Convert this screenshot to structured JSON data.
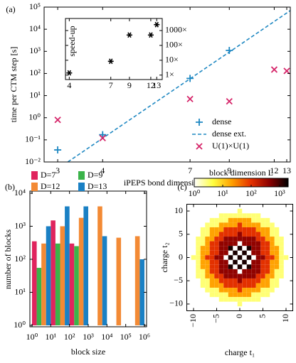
{
  "chart_data": [
    {
      "type": "scatter",
      "panel_label": "(a)",
      "xlabel": "iPEPS bond dimension D",
      "ylabel": "time per CTM step [s]",
      "xscale": "log",
      "yscale": "log",
      "xlim": [
        2.75,
        13.3
      ],
      "ylim": [
        0.01,
        100000
      ],
      "xticks": [
        3,
        4,
        7,
        9,
        12,
        13
      ],
      "yticks": [
        {
          "value": 0.01,
          "label": "10⁻²"
        },
        {
          "value": 0.1,
          "label": "10⁻¹"
        },
        {
          "value": 1,
          "label": "10⁰"
        },
        {
          "value": 10,
          "label": "10¹"
        },
        {
          "value": 100,
          "label": "10²"
        },
        {
          "value": 1000,
          "label": "10³"
        },
        {
          "value": 10000,
          "label": "10⁴"
        },
        {
          "value": 100000,
          "label": "10⁵"
        }
      ],
      "legend": "lower right",
      "series": [
        {
          "name": "dense",
          "color": "#1f88c2",
          "marker": "plus",
          "x": [
            3,
            4,
            7,
            9
          ],
          "values": [
            0.035,
            0.17,
            60,
            1100
          ]
        },
        {
          "name": "dense ext.",
          "color": "#1f88c2",
          "style": "dashed",
          "x": [
            3.2,
            13.3
          ],
          "values": [
            0.01,
            70000
          ]
        },
        {
          "name": "U(1)×U(1)",
          "color": "#d6266a",
          "marker": "x",
          "x": [
            3,
            4,
            7,
            9,
            12,
            13
          ],
          "values": [
            0.8,
            0.12,
            7,
            5.5,
            150,
            130
          ]
        }
      ]
    },
    {
      "type": "scatter",
      "ylabel": "speed-up",
      "xscale": "log",
      "yscale": "log",
      "xlim": [
        3.8,
        14
      ],
      "ylim": [
        0.5,
        6500
      ],
      "xticks": [
        4,
        7,
        9,
        12,
        13
      ],
      "yticks": [
        {
          "value": 1,
          "label": "1×"
        },
        {
          "value": 10,
          "label": "10×"
        },
        {
          "value": 100,
          "label": "100×"
        },
        {
          "value": 1000,
          "label": "1000×"
        }
      ],
      "series": [
        {
          "color": "#000000",
          "marker": "asterisk",
          "x": [
            4,
            7,
            9,
            12,
            13
          ],
          "values": [
            1.4,
            8.5,
            500,
            500,
            2500
          ]
        }
      ]
    },
    {
      "type": "histogram",
      "panel_label": "(b)",
      "xlabel": "block size",
      "ylabel": "number of blocks",
      "xscale": "log",
      "yscale": "log",
      "xlim": [
        1,
        1000000
      ],
      "ylim": [
        1,
        10000
      ],
      "bins": [
        1,
        10,
        100,
        1000,
        10000,
        100000,
        1000000
      ],
      "xticks": [
        {
          "value": 1,
          "label": "10⁰"
        },
        {
          "value": 10,
          "label": "10¹"
        },
        {
          "value": 100,
          "label": "10²"
        },
        {
          "value": 1000,
          "label": "10³"
        },
        {
          "value": 10000,
          "label": "10⁴"
        },
        {
          "value": 100000,
          "label": "10⁵"
        },
        {
          "value": 1000000,
          "label": "10⁶"
        }
      ],
      "yticks": [
        {
          "value": 1,
          "label": "10⁰"
        },
        {
          "value": 10,
          "label": "10¹"
        },
        {
          "value": 100,
          "label": "10²"
        },
        {
          "value": 1000,
          "label": "10³"
        },
        {
          "value": 10000,
          "label": "10⁴"
        }
      ],
      "legend": "top",
      "series": [
        {
          "name": "D=7",
          "color": "#e0245e",
          "values": [
            350,
            1500,
            300,
            null,
            null,
            null
          ]
        },
        {
          "name": "D=9",
          "color": "#3bb34a",
          "values": [
            55,
            300,
            250,
            1,
            null,
            null
          ]
        },
        {
          "name": "D=12",
          "color": "#f38a35",
          "values": [
            300,
            1000,
            1800,
            4000,
            450,
            500
          ]
        },
        {
          "name": "D=13",
          "color": "#1a80c4",
          "values": [
            1000,
            4000,
            4000,
            500,
            null,
            100
          ]
        }
      ]
    },
    {
      "type": "heatmap",
      "panel_label": "(c)",
      "xlabel": "charge t₁",
      "ylabel": "charge t₂",
      "xlim": [
        -11,
        11
      ],
      "ylim": [
        -11,
        11
      ],
      "xticks": [
        {
          "value": -10,
          "label": "−10"
        },
        {
          "value": -5,
          "label": "−5"
        },
        0,
        5,
        10
      ],
      "yticks": [
        {
          "value": -10,
          "label": "−10"
        },
        {
          "value": -5,
          "label": "−5"
        },
        0,
        5,
        10
      ],
      "x": [
        -10,
        -9,
        -8,
        -7,
        -6,
        -5,
        -4,
        -3,
        -2,
        -1,
        0,
        1,
        2,
        3,
        4,
        5,
        6,
        7,
        8,
        9,
        10
      ],
      "y": [
        10,
        9,
        8,
        7,
        6,
        5,
        4,
        3,
        2,
        1,
        0,
        -1,
        -2,
        -3,
        -4,
        -5,
        -6,
        -7,
        -8,
        -9,
        -10
      ],
      "z": [
        [
          null,
          null,
          null,
          null,
          null,
          null,
          null,
          null,
          null,
          null,
          3,
          null,
          null,
          null,
          null,
          null,
          null,
          null,
          null,
          null,
          null
        ],
        [
          null,
          null,
          null,
          null,
          null,
          null,
          3,
          3,
          3,
          3,
          3,
          3,
          3,
          3,
          3,
          null,
          null,
          null,
          null,
          null,
          null
        ],
        [
          null,
          null,
          null,
          null,
          3,
          3,
          3,
          3,
          20,
          20,
          20,
          20,
          20,
          3,
          3,
          3,
          3,
          null,
          null,
          null,
          null
        ],
        [
          null,
          null,
          null,
          3,
          3,
          3,
          20,
          20,
          20,
          20,
          100,
          20,
          20,
          20,
          20,
          3,
          3,
          3,
          null,
          null,
          null
        ],
        [
          null,
          null,
          3,
          3,
          20,
          20,
          20,
          100,
          100,
          100,
          100,
          100,
          100,
          100,
          20,
          20,
          20,
          3,
          3,
          null,
          null
        ],
        [
          null,
          null,
          3,
          3,
          20,
          20,
          100,
          100,
          100,
          100,
          400,
          100,
          100,
          100,
          100,
          20,
          20,
          3,
          3,
          null,
          null
        ],
        [
          null,
          3,
          3,
          20,
          20,
          100,
          100,
          400,
          400,
          400,
          400,
          400,
          400,
          400,
          100,
          100,
          20,
          20,
          3,
          3,
          null
        ],
        [
          null,
          3,
          3,
          20,
          100,
          100,
          400,
          400,
          400,
          400,
          null,
          400,
          400,
          400,
          400,
          100,
          100,
          20,
          3,
          3,
          null
        ],
        [
          null,
          3,
          20,
          20,
          100,
          100,
          400,
          400,
          1500,
          null,
          1500,
          null,
          1500,
          400,
          400,
          100,
          100,
          20,
          20,
          3,
          null
        ],
        [
          null,
          3,
          20,
          20,
          100,
          100,
          400,
          400,
          null,
          1500,
          null,
          1500,
          null,
          400,
          400,
          100,
          100,
          20,
          20,
          3,
          null
        ],
        [
          3,
          3,
          20,
          100,
          100,
          400,
          400,
          null,
          1500,
          null,
          1500,
          null,
          1500,
          null,
          400,
          400,
          100,
          100,
          20,
          3,
          3
        ],
        [
          null,
          3,
          20,
          20,
          100,
          100,
          400,
          400,
          null,
          1500,
          null,
          1500,
          null,
          400,
          400,
          100,
          100,
          20,
          20,
          3,
          null
        ],
        [
          null,
          3,
          20,
          20,
          100,
          100,
          400,
          400,
          1500,
          null,
          1500,
          null,
          1500,
          400,
          400,
          100,
          100,
          20,
          20,
          3,
          null
        ],
        [
          null,
          3,
          3,
          20,
          100,
          100,
          400,
          400,
          400,
          400,
          null,
          400,
          400,
          400,
          400,
          100,
          100,
          20,
          3,
          3,
          null
        ],
        [
          null,
          3,
          3,
          20,
          20,
          100,
          100,
          400,
          400,
          400,
          400,
          400,
          400,
          400,
          100,
          100,
          20,
          20,
          3,
          3,
          null
        ],
        [
          null,
          null,
          3,
          3,
          20,
          20,
          100,
          100,
          100,
          100,
          400,
          100,
          100,
          100,
          100,
          20,
          20,
          3,
          3,
          null,
          null
        ],
        [
          null,
          null,
          3,
          3,
          20,
          20,
          20,
          100,
          100,
          100,
          100,
          100,
          100,
          100,
          20,
          20,
          20,
          3,
          3,
          null,
          null
        ],
        [
          null,
          null,
          null,
          3,
          3,
          3,
          20,
          20,
          20,
          20,
          100,
          20,
          20,
          20,
          20,
          3,
          3,
          3,
          null,
          null,
          null
        ],
        [
          null,
          null,
          null,
          null,
          3,
          3,
          3,
          3,
          20,
          20,
          20,
          20,
          20,
          3,
          3,
          3,
          3,
          null,
          null,
          null,
          null
        ],
        [
          null,
          null,
          null,
          null,
          null,
          null,
          3,
          3,
          3,
          3,
          3,
          3,
          3,
          3,
          3,
          null,
          null,
          null,
          null,
          null,
          null
        ],
        [
          null,
          null,
          null,
          null,
          null,
          null,
          null,
          null,
          null,
          null,
          3,
          null,
          null,
          null,
          null,
          null,
          null,
          null,
          null,
          null,
          null
        ]
      ],
      "colorbar": {
        "label": "block dimension L",
        "scale": "log",
        "lim": [
          1,
          2000
        ],
        "ticks": [
          {
            "value": 1,
            "label": "10⁰"
          },
          {
            "value": 10,
            "label": "10¹"
          },
          {
            "value": 100,
            "label": "10²"
          },
          {
            "value": 1000,
            "label": "10³"
          }
        ],
        "colors": [
          "#ffffff",
          "#ffff40",
          "#ffa000",
          "#e63200",
          "#8c0000",
          "#000000"
        ]
      }
    }
  ]
}
